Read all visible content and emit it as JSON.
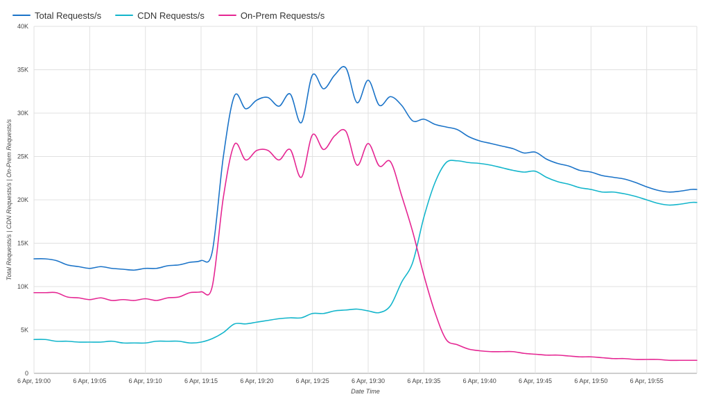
{
  "chart_data": {
    "type": "line",
    "title": "",
    "xlabel": "Date Time",
    "ylabel": "Total Requests/s | CDN Requests/s | On-Prem Requests/s",
    "ylim": [
      0,
      40000
    ],
    "xlim": [
      0,
      59.5
    ],
    "y_ticks": [
      0,
      5000,
      10000,
      15000,
      20000,
      25000,
      30000,
      35000,
      40000
    ],
    "y_tick_labels": [
      "0",
      "5K",
      "10K",
      "15K",
      "20K",
      "25K",
      "30K",
      "35K",
      "40K"
    ],
    "x_ticks": [
      0,
      5,
      10,
      15,
      20,
      25,
      30,
      35,
      40,
      45,
      50,
      55
    ],
    "x_tick_labels": [
      "6 Apr, 19:00",
      "6 Apr, 19:05",
      "6 Apr, 19:10",
      "6 Apr, 19:15",
      "6 Apr, 19:20",
      "6 Apr, 19:25",
      "6 Apr, 19:30",
      "6 Apr, 19:35",
      "6 Apr, 19:40",
      "6 Apr, 19:45",
      "6 Apr, 19:50",
      "6 Apr, 19:55"
    ],
    "legend_position": "top-left",
    "grid": true,
    "x": [
      0,
      1,
      2,
      3,
      4,
      5,
      6,
      7,
      8,
      9,
      10,
      11,
      12,
      13,
      14,
      15,
      16,
      17,
      18,
      19,
      20,
      21,
      22,
      23,
      24,
      25,
      26,
      27,
      28,
      29,
      30,
      31,
      32,
      33,
      34,
      35,
      36,
      37,
      38,
      39,
      40,
      41,
      42,
      43,
      44,
      45,
      46,
      47,
      48,
      49,
      50,
      51,
      52,
      53,
      54,
      55,
      56,
      57,
      58,
      59,
      59.5
    ],
    "series": [
      {
        "name": "Total Requests/s",
        "color": "#1a73c8",
        "values": [
          13200,
          13200,
          13000,
          12500,
          12300,
          12100,
          12300,
          12100,
          12000,
          11900,
          12100,
          12100,
          12400,
          12500,
          12800,
          13000,
          14000,
          25000,
          32000,
          30500,
          31500,
          31800,
          30800,
          32200,
          28900,
          34400,
          32800,
          34400,
          35200,
          31200,
          33800,
          30900,
          31900,
          30900,
          29100,
          29300,
          28700,
          28400,
          28100,
          27300,
          26800,
          26500,
          26200,
          25900,
          25400,
          25500,
          24700,
          24200,
          23900,
          23400,
          23200,
          22800,
          22600,
          22400,
          22000,
          21500,
          21100,
          20900,
          21000,
          21200,
          21200
        ]
      },
      {
        "name": "CDN Requests/s",
        "color": "#12b5cb",
        "values": [
          3900,
          3900,
          3700,
          3700,
          3600,
          3600,
          3600,
          3700,
          3500,
          3500,
          3500,
          3700,
          3700,
          3700,
          3500,
          3600,
          4000,
          4700,
          5700,
          5700,
          5900,
          6100,
          6300,
          6400,
          6400,
          6900,
          6900,
          7200,
          7300,
          7400,
          7200,
          7000,
          7800,
          10500,
          12800,
          18000,
          22000,
          24300,
          24500,
          24300,
          24200,
          24000,
          23700,
          23400,
          23200,
          23300,
          22600,
          22100,
          21800,
          21400,
          21200,
          20900,
          20900,
          20700,
          20400,
          20000,
          19600,
          19400,
          19500,
          19700,
          19700
        ]
      },
      {
        "name": "On-Prem Requests/s",
        "color": "#e52592",
        "values": [
          9300,
          9300,
          9300,
          8800,
          8700,
          8500,
          8700,
          8400,
          8500,
          8400,
          8600,
          8400,
          8700,
          8800,
          9300,
          9400,
          10000,
          20300,
          26400,
          24600,
          25700,
          25700,
          24600,
          25800,
          22600,
          27500,
          25800,
          27400,
          27900,
          24000,
          26500,
          23900,
          24400,
          20500,
          16300,
          11300,
          7000,
          3900,
          3300,
          2800,
          2600,
          2500,
          2500,
          2500,
          2300,
          2200,
          2100,
          2100,
          2000,
          1900,
          1900,
          1800,
          1700,
          1700,
          1600,
          1600,
          1600,
          1500,
          1500,
          1500,
          1500
        ]
      }
    ]
  }
}
